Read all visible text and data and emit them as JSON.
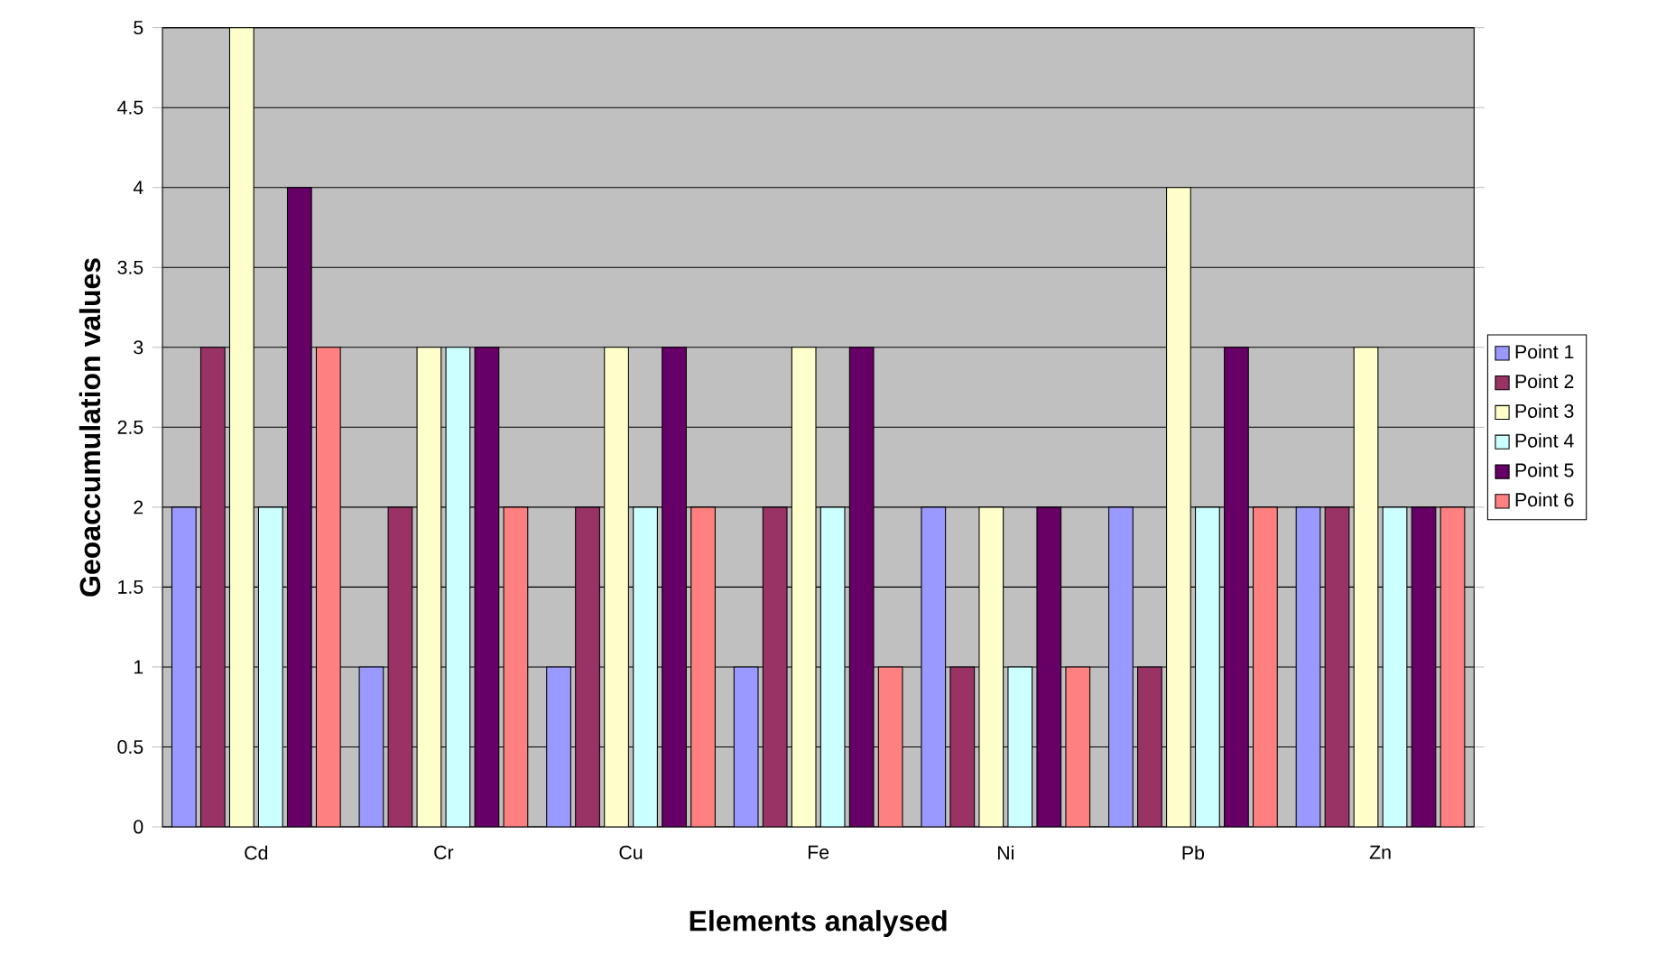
{
  "chart_data": {
    "type": "bar",
    "xlabel": "Elements analysed",
    "ylabel": "Geoaccumulation values",
    "categories": [
      "Cd",
      "Cr",
      "Cu",
      "Fe",
      "Ni",
      "Pb",
      "Zn"
    ],
    "series": [
      {
        "name": "Point 1",
        "color": "#9999ff",
        "values": [
          2,
          1,
          1,
          1,
          2,
          2,
          2
        ]
      },
      {
        "name": "Point 2",
        "color": "#993366",
        "values": [
          3,
          2,
          2,
          2,
          1,
          1,
          2
        ]
      },
      {
        "name": "Point 3",
        "color": "#ffffcc",
        "values": [
          5,
          3,
          3,
          3,
          2,
          4,
          3
        ]
      },
      {
        "name": "Point 4",
        "color": "#ccffff",
        "values": [
          2,
          3,
          2,
          2,
          1,
          2,
          2
        ]
      },
      {
        "name": "Point 5",
        "color": "#660066",
        "values": [
          4,
          3,
          3,
          3,
          2,
          3,
          2
        ]
      },
      {
        "name": "Point 6",
        "color": "#ff8080",
        "values": [
          3,
          2,
          2,
          1,
          1,
          2,
          2
        ]
      }
    ],
    "ylim": [
      0,
      5
    ],
    "yticks": [
      0,
      0.5,
      1,
      1.5,
      2,
      2.5,
      3,
      3.5,
      4,
      4.5,
      5
    ],
    "grid": "y",
    "legend": "right"
  }
}
